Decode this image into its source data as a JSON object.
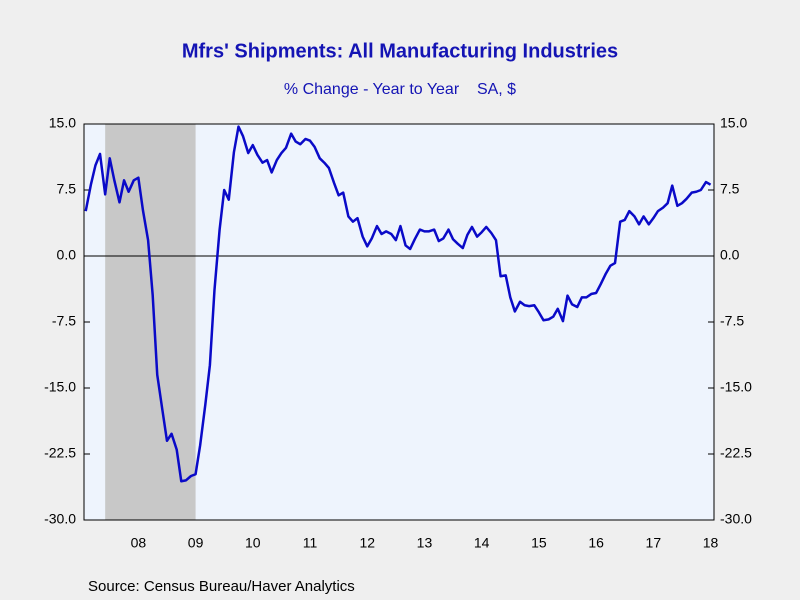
{
  "chart_data": {
    "type": "line",
    "title": "Mfrs' Shipments: All Manufacturing Industries",
    "subtitle": "% Change - Year to Year    SA, $",
    "source": "Source:  Census Bureau/Haver Analytics",
    "xlim": [
      7.55,
      18.56
    ],
    "xticks": [
      {
        "value": 8.5,
        "label": "08"
      },
      {
        "value": 9.5,
        "label": "09"
      },
      {
        "value": 10.5,
        "label": "10"
      },
      {
        "value": 11.5,
        "label": "11"
      },
      {
        "value": 12.5,
        "label": "12"
      },
      {
        "value": 13.5,
        "label": "13"
      },
      {
        "value": 14.5,
        "label": "14"
      },
      {
        "value": 15.5,
        "label": "15"
      },
      {
        "value": 16.5,
        "label": "16"
      },
      {
        "value": 17.5,
        "label": "17"
      },
      {
        "value": 18.5,
        "label": "18"
      }
    ],
    "ylim": [
      -30,
      15
    ],
    "yticks": [
      {
        "value": 15,
        "label": "15.0"
      },
      {
        "value": 7.5,
        "label": "7.5"
      },
      {
        "value": 0,
        "label": "0.0"
      },
      {
        "value": -7.5,
        "label": "-7.5"
      },
      {
        "value": -15,
        "label": "-15.0"
      },
      {
        "value": -22.5,
        "label": "-22.5"
      },
      {
        "value": -30,
        "label": "-30.0"
      }
    ],
    "recession_shading": [
      7.92,
      9.5
    ],
    "x": [
      7.58,
      7.67,
      7.75,
      7.83,
      7.92,
      8.0,
      8.08,
      8.17,
      8.25,
      8.33,
      8.42,
      8.5,
      8.58,
      8.67,
      8.75,
      8.83,
      8.92,
      9.0,
      9.08,
      9.17,
      9.25,
      9.33,
      9.42,
      9.5,
      9.58,
      9.67,
      9.75,
      9.83,
      9.92,
      10.0,
      10.08,
      10.17,
      10.25,
      10.33,
      10.42,
      10.5,
      10.58,
      10.67,
      10.75,
      10.83,
      10.92,
      11.0,
      11.08,
      11.17,
      11.25,
      11.33,
      11.42,
      11.5,
      11.58,
      11.67,
      11.75,
      11.83,
      11.92,
      12.0,
      12.08,
      12.17,
      12.25,
      12.33,
      12.42,
      12.5,
      12.58,
      12.67,
      12.75,
      12.83,
      12.92,
      13.0,
      13.08,
      13.17,
      13.25,
      13.33,
      13.42,
      13.5,
      13.58,
      13.67,
      13.75,
      13.83,
      13.92,
      14.0,
      14.08,
      14.17,
      14.25,
      14.33,
      14.42,
      14.5,
      14.58,
      14.67,
      14.75,
      14.83,
      14.92,
      15.0,
      15.08,
      15.17,
      15.25,
      15.33,
      15.42,
      15.5,
      15.58,
      15.67,
      15.75,
      15.83,
      15.92,
      16.0,
      16.08,
      16.17,
      16.25,
      16.33,
      16.42,
      16.5,
      16.58,
      16.67,
      16.75,
      16.83,
      16.92,
      17.0,
      17.08,
      17.17,
      17.25,
      17.33,
      17.42,
      17.5,
      17.58,
      17.67,
      17.75,
      17.83,
      17.92,
      18.0,
      18.08,
      18.17,
      18.25,
      18.33,
      18.42,
      18.5
    ],
    "series": [
      {
        "color": "#0a0ac8",
        "values": [
          5.1,
          8.1,
          10.3,
          11.6,
          7.0,
          11.1,
          8.6,
          6.1,
          8.6,
          7.3,
          8.6,
          8.9,
          5.2,
          1.8,
          -4.4,
          -13.5,
          -17.5,
          -21.0,
          -20.2,
          -22.0,
          -25.6,
          -25.5,
          -25.0,
          -24.8,
          -21.5,
          -16.9,
          -12.4,
          -3.9,
          3.0,
          7.5,
          6.4,
          11.8,
          14.7,
          13.6,
          11.7,
          12.6,
          11.5,
          10.6,
          10.9,
          9.5,
          10.9,
          11.7,
          12.3,
          13.9,
          13.0,
          12.7,
          13.3,
          13.1,
          12.4,
          11.1,
          10.6,
          10.0,
          8.3,
          6.9,
          7.2,
          4.5,
          3.9,
          4.3,
          2.2,
          1.1,
          2.0,
          3.4,
          2.5,
          2.8,
          2.5,
          1.8,
          3.4,
          1.2,
          0.8,
          1.9,
          3.0,
          2.8,
          2.8,
          3.0,
          1.7,
          2.0,
          3.0,
          1.9,
          1.4,
          0.9,
          2.4,
          3.3,
          2.2,
          2.7,
          3.3,
          2.6,
          1.8,
          -2.3,
          -2.2,
          -4.7,
          -6.3,
          -5.2,
          -5.6,
          -5.7,
          -5.6,
          -6.4,
          -7.3,
          -7.2,
          -6.9,
          -6.0,
          -7.4,
          -4.5,
          -5.5,
          -5.8,
          -4.7,
          -4.7,
          -4.3,
          -4.2,
          -3.2,
          -2.0,
          -1.1,
          -0.8,
          3.9,
          4.1,
          5.1,
          4.5,
          3.6,
          4.5,
          3.6,
          4.3,
          5.1,
          5.5,
          6.0,
          8.0,
          5.7,
          6.0,
          6.5,
          7.2,
          7.3,
          7.5,
          8.4,
          8.1
        ]
      }
    ]
  }
}
